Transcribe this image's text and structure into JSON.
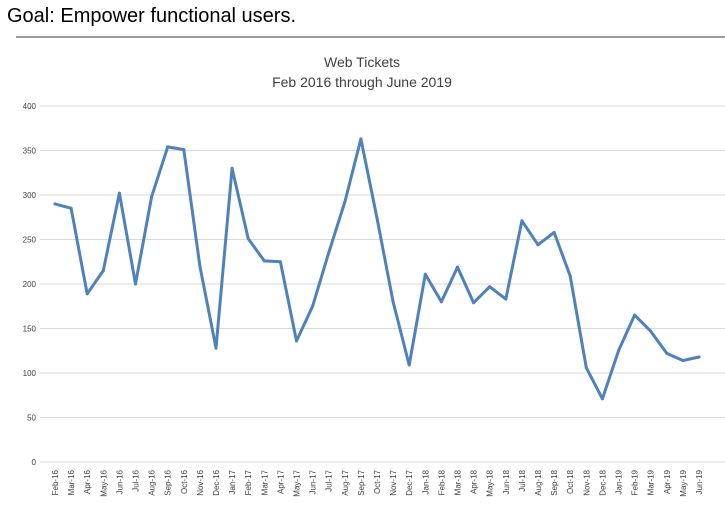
{
  "page": {
    "slide_title": "Goal: Empower functional users."
  },
  "chart_data": {
    "type": "line",
    "title": "Web Tickets",
    "subtitle": "Feb 2016 through June 2019",
    "xlabel": "",
    "ylabel": "",
    "ylim": [
      0,
      400
    ],
    "yticks": [
      0,
      50,
      100,
      150,
      200,
      250,
      300,
      350,
      400
    ],
    "grid": true,
    "legend": "none",
    "line_color": "#4f81bd",
    "categories": [
      "Feb-16",
      "Mar-16",
      "Apr-16",
      "May-16",
      "Jun-16",
      "Jul-16",
      "Aug-16",
      "Sep-16",
      "Oct-16",
      "Nov-16",
      "Dec-16",
      "Jan-17",
      "Feb-17",
      "Mar-17",
      "Apr-17",
      "May-17",
      "Jun-17",
      "Jul-17",
      "Aug-17",
      "Sep-17",
      "Oct-17",
      "Nov-17",
      "Dec-17",
      "Jan-18",
      "Feb-18",
      "Mar-18",
      "Apr-18",
      "May-18",
      "Jun-18",
      "Jul-18",
      "Aug-18",
      "Sep-18",
      "Oct-18",
      "Nov-18",
      "Dec-18",
      "Jan-19",
      "Feb-19",
      "Mar-19",
      "Apr-19",
      "May-19",
      "Jun-19"
    ],
    "series": [
      {
        "values": [
          290,
          285,
          189,
          215,
          302,
          200,
          298,
          354,
          351,
          220,
          128,
          330,
          251,
          226,
          225,
          136,
          175,
          235,
          292,
          363,
          274,
          180,
          109,
          211,
          180,
          219,
          179,
          197,
          183,
          271,
          244,
          258,
          209,
          106,
          71,
          125,
          165,
          147,
          122,
          114,
          118
        ]
      }
    ]
  }
}
